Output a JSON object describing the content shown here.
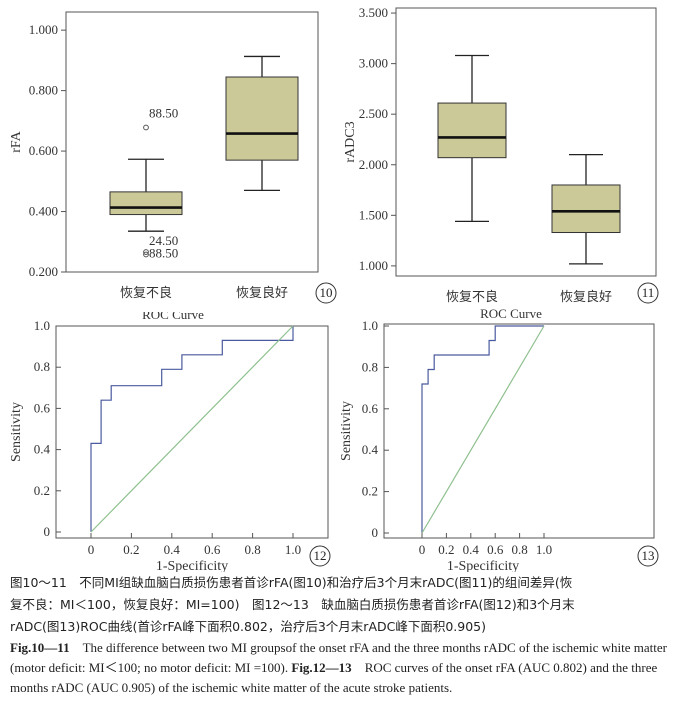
{
  "chart_data": [
    {
      "type": "box",
      "panel_number": "10",
      "ylabel": "rFA",
      "xlabel": "",
      "ylim": [
        0.2,
        1.06
      ],
      "yticks": [
        "0.200",
        "0.400",
        "0.600",
        "0.800",
        "1.000"
      ],
      "ytick_values": [
        0.2,
        0.4,
        0.6,
        0.8,
        1.0
      ],
      "categories": [
        "恢复不良",
        "恢复良好"
      ],
      "boxes": [
        {
          "min": 0.335,
          "q1": 0.39,
          "median": 0.413,
          "q3": 0.465,
          "max": 0.573,
          "outliers": [
            {
              "value": 0.678,
              "label": "88.50"
            },
            {
              "value": 0.266,
              "label": "24.50"
            },
            {
              "value": 0.258,
              "label": "88.50"
            }
          ]
        },
        {
          "min": 0.47,
          "q1": 0.57,
          "median": 0.658,
          "q3": 0.845,
          "max": 0.913,
          "outliers": []
        }
      ],
      "box_color": "#ccc999"
    },
    {
      "type": "box",
      "panel_number": "11",
      "ylabel": "rADC3",
      "xlabel": "ROC Curve",
      "ylim": [
        0.9,
        3.55
      ],
      "yticks": [
        "1.000",
        "1.500",
        "2.000",
        "2.500",
        "3.000",
        "3.500"
      ],
      "ytick_values": [
        1.0,
        1.5,
        2.0,
        2.5,
        3.0,
        3.5
      ],
      "categories": [
        "恢复不良",
        "恢复良好"
      ],
      "boxes": [
        {
          "min": 1.44,
          "q1": 2.07,
          "median": 2.27,
          "q3": 2.61,
          "max": 3.08,
          "outliers": []
        },
        {
          "min": 1.02,
          "q1": 1.33,
          "median": 1.54,
          "q3": 1.8,
          "max": 2.1,
          "outliers": []
        }
      ],
      "box_color": "#ccc999"
    },
    {
      "type": "line",
      "panel_number": "12",
      "title": "ROC Curve",
      "xlabel": "1-Specificity",
      "ylabel": "Sensitivity",
      "xlim": [
        0,
        1
      ],
      "ylim": [
        0,
        1
      ],
      "xticks": [
        "0",
        "0.2",
        "0.4",
        "0.6",
        "0.8",
        "1.0"
      ],
      "yticks": [
        "0",
        "0.2",
        "0.4",
        "0.6",
        "0.8",
        "1.0"
      ],
      "tick_values": [
        0,
        0.2,
        0.4,
        0.6,
        0.8,
        1.0
      ],
      "series": [
        {
          "name": "rFA",
          "color": "#4a5a9e",
          "x": [
            0,
            0,
            0.05,
            0.05,
            0.1,
            0.1,
            0.15,
            0.15,
            0.35,
            0.35,
            0.45,
            0.45,
            0.65,
            0.65,
            1.0,
            1.0
          ],
          "y": [
            0,
            0.43,
            0.43,
            0.64,
            0.64,
            0.71,
            0.71,
            0.71,
            0.71,
            0.79,
            0.79,
            0.86,
            0.86,
            0.93,
            0.93,
            1.0
          ]
        },
        {
          "name": "reference",
          "color": "#8fc08f",
          "x": [
            0,
            1
          ],
          "y": [
            0,
            1
          ]
        }
      ]
    },
    {
      "type": "line",
      "panel_number": "13",
      "title": "",
      "xlabel": "1-Specificity",
      "ylabel": "Sensitivity",
      "xlim": [
        0,
        1
      ],
      "ylim": [
        0,
        1
      ],
      "xticks": [
        "0",
        "0.2",
        "0.4",
        "0.6",
        "0.8",
        "1.0"
      ],
      "yticks": [
        "0",
        "0.2",
        "0.4",
        "0.6",
        "0.8",
        "1.0"
      ],
      "tick_values": [
        0,
        0.2,
        0.4,
        0.6,
        0.8,
        1.0
      ],
      "series": [
        {
          "name": "rADC",
          "color": "#4a5a9e",
          "x": [
            0,
            0,
            0.05,
            0.05,
            0.1,
            0.1,
            0.15,
            0.15,
            0.55,
            0.55,
            0.6,
            0.6,
            1.0
          ],
          "y": [
            0,
            0.72,
            0.72,
            0.79,
            0.79,
            0.86,
            0.86,
            0.86,
            0.86,
            0.93,
            0.93,
            1.0,
            1.0
          ]
        },
        {
          "name": "reference",
          "color": "#8fc08f",
          "x": [
            0,
            1
          ],
          "y": [
            0,
            1
          ]
        }
      ]
    }
  ],
  "caption": {
    "zh_line1": "图10～11　不同MI组缺血脑白质损伤患者首诊rFA(图10)和治疗后3个月末rADC(图11)的组间差异(恢",
    "zh_line2": "复不良：MI＜100，恢复良好：MI=100)　图12～13　缺血脑白质损伤患者首诊rFA(图12)和3个月末",
    "zh_line3": "rADC(图13)ROC曲线(首诊rFA峰下面积0.802，治疗后3个月末rADC峰下面积0.905)",
    "en_fig1": "Fig.10—11",
    "en_text1": "　The difference between two MI groupsof the onset rFA and the three months rADC of the ischemic white matter (motor deficit: MI＜100; no motor deficit: MI =100).",
    "en_fig2": "Fig.12—13",
    "en_text2": "　ROC curves of the onset rFA (AUC 0.802) and the three months rADC (AUC 0.905) of the ischemic white matter of the acute stroke patients."
  }
}
